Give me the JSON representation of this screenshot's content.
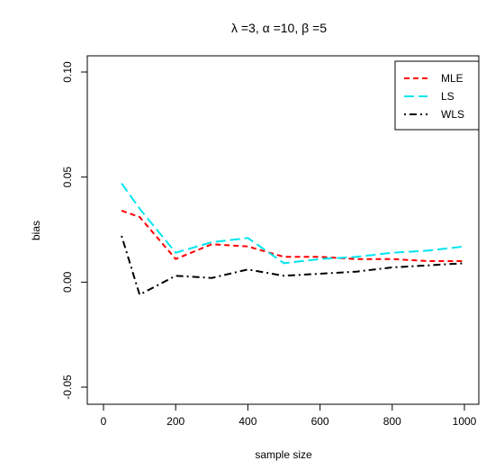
{
  "chart_data": {
    "type": "line",
    "title": "λ =3, α =10, β =5",
    "xlabel": "sample size",
    "ylabel": "bias",
    "xlim": [
      0,
      1000
    ],
    "ylim": [
      -0.05,
      0.1
    ],
    "xticks": [
      0,
      200,
      400,
      600,
      800,
      1000
    ],
    "xtick_labels": [
      "0",
      "200",
      "400",
      "600",
      "800",
      "1000"
    ],
    "yticks": [
      -0.05,
      0.0,
      0.05,
      0.1
    ],
    "ytick_labels": [
      "-0.05",
      "0.00",
      "0.05",
      "0.10"
    ],
    "grid": false,
    "legend_position": "top-right",
    "x": [
      50,
      100,
      200,
      300,
      400,
      500,
      600,
      700,
      800,
      900,
      1000
    ],
    "series": [
      {
        "name": "MLE",
        "color": "#ff0000",
        "dash": "dashed",
        "values": [
          0.034,
          0.031,
          0.011,
          0.018,
          0.017,
          0.012,
          0.012,
          0.011,
          0.011,
          0.01,
          0.01
        ]
      },
      {
        "name": "LS",
        "color": "#00e5ee",
        "dash": "longdash",
        "values": [
          0.047,
          0.035,
          0.014,
          0.019,
          0.021,
          0.009,
          0.011,
          0.012,
          0.014,
          0.015,
          0.017
        ]
      },
      {
        "name": "WLS",
        "color": "#000000",
        "dash": "dotdash",
        "values": [
          0.022,
          -0.006,
          0.003,
          0.002,
          0.006,
          0.003,
          0.004,
          0.005,
          0.007,
          0.008,
          0.009
        ]
      }
    ]
  }
}
